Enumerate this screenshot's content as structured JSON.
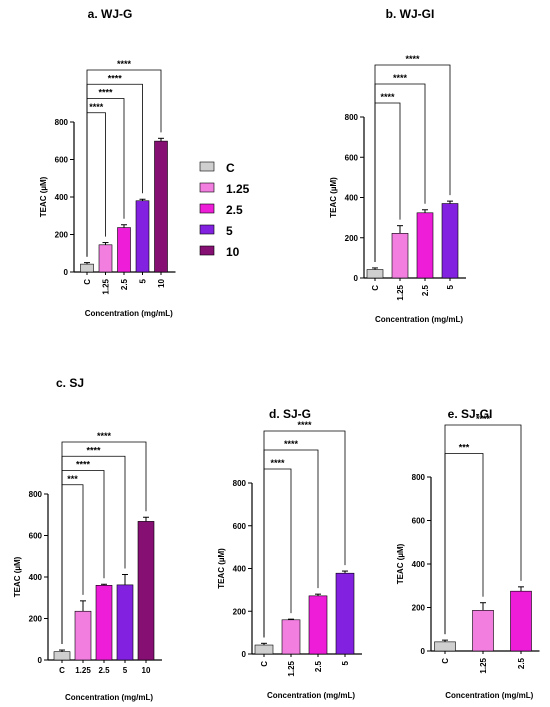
{
  "chart_data": [
    {
      "id": "a",
      "type": "bar",
      "title": "a. WJ-G",
      "xlabel": "Concentration (mg/mL)",
      "ylabel": "TEAC (µM)",
      "ylim": [
        0,
        800
      ],
      "yticks": [
        0,
        200,
        400,
        600,
        800
      ],
      "categories": [
        "C",
        "1.25",
        "2.5",
        "5",
        "10"
      ],
      "values": [
        42,
        145,
        237,
        380,
        698
      ],
      "errors": [
        8,
        12,
        15,
        8,
        15
      ],
      "colors": [
        "#cfcfcf",
        "#f27ee0",
        "#ee1dd8",
        "#8222e0",
        "#850f73"
      ],
      "tick_rotated": true,
      "significance": [
        {
          "to": 1,
          "label": "****"
        },
        {
          "to": 2,
          "label": "****"
        },
        {
          "to": 3,
          "label": "****"
        },
        {
          "to": 4,
          "label": "****"
        }
      ]
    },
    {
      "id": "b",
      "type": "bar",
      "title": "b. WJ-GI",
      "xlabel": "Concentration (mg/mL)",
      "ylabel": "TEAC (µM)",
      "ylim": [
        0,
        800
      ],
      "yticks": [
        0,
        200,
        400,
        600,
        800
      ],
      "categories": [
        "C",
        "1.25",
        "2.5",
        "5"
      ],
      "values": [
        42,
        222,
        324,
        370
      ],
      "errors": [
        8,
        38,
        15,
        12
      ],
      "colors": [
        "#cfcfcf",
        "#f27ee0",
        "#ee1dd8",
        "#8222e0"
      ],
      "tick_rotated": true,
      "significance": [
        {
          "to": 1,
          "label": "****"
        },
        {
          "to": 2,
          "label": "****"
        },
        {
          "to": 3,
          "label": "****"
        }
      ]
    },
    {
      "id": "c",
      "type": "bar",
      "title": "c. SJ",
      "xlabel": "Concentration (mg/mL)",
      "ylabel": "TEAC (µM)",
      "ylim": [
        0,
        800
      ],
      "yticks": [
        0,
        200,
        400,
        600,
        800
      ],
      "categories": [
        "C",
        "1.25",
        "2.5",
        "5",
        "10"
      ],
      "values": [
        40,
        235,
        360,
        362,
        668
      ],
      "errors": [
        8,
        50,
        5,
        50,
        20
      ],
      "colors": [
        "#cfcfcf",
        "#f27ee0",
        "#ee1dd8",
        "#8222e0",
        "#850f73"
      ],
      "tick_rotated": false,
      "significance": [
        {
          "to": 1,
          "label": "***"
        },
        {
          "to": 2,
          "label": "****"
        },
        {
          "to": 3,
          "label": "****"
        },
        {
          "to": 4,
          "label": "****"
        }
      ]
    },
    {
      "id": "d",
      "type": "bar",
      "title": "d. SJ-G",
      "xlabel": "Concentration (mg/mL)",
      "ylabel": "TEAC (µM)",
      "ylim": [
        0,
        800
      ],
      "yticks": [
        0,
        200,
        400,
        600,
        800
      ],
      "categories": [
        "C",
        "1.25",
        "2.5",
        "5"
      ],
      "values": [
        42,
        160,
        272,
        378
      ],
      "errors": [
        8,
        3,
        8,
        10
      ],
      "colors": [
        "#cfcfcf",
        "#f27ee0",
        "#ee1dd8",
        "#8222e0"
      ],
      "tick_rotated": true,
      "significance": [
        {
          "to": 1,
          "label": "****"
        },
        {
          "to": 2,
          "label": "****"
        },
        {
          "to": 3,
          "label": "****"
        }
      ]
    },
    {
      "id": "e",
      "type": "bar",
      "title": "e. SJ-GI",
      "xlabel": "Concentration (mg/mL)",
      "ylabel": "TEAC (µM)",
      "ylim": [
        0,
        800
      ],
      "yticks": [
        0,
        200,
        400,
        600,
        800
      ],
      "categories": [
        "C",
        "1.25",
        "2.5"
      ],
      "values": [
        42,
        187,
        275
      ],
      "errors": [
        8,
        35,
        20
      ],
      "colors": [
        "#cfcfcf",
        "#f27ee0",
        "#ee1dd8"
      ],
      "tick_rotated": true,
      "significance": [
        {
          "to": 1,
          "label": "***"
        },
        {
          "to": 2,
          "label": "****"
        }
      ]
    }
  ],
  "legend": {
    "placement": "top-center",
    "items": [
      {
        "label": "C",
        "color": "#cfcfcf"
      },
      {
        "label": "1.25",
        "color": "#f27ee0"
      },
      {
        "label": "2.5",
        "color": "#ee1dd8"
      },
      {
        "label": "5",
        "color": "#8222e0"
      },
      {
        "label": "10",
        "color": "#850f73"
      }
    ]
  }
}
